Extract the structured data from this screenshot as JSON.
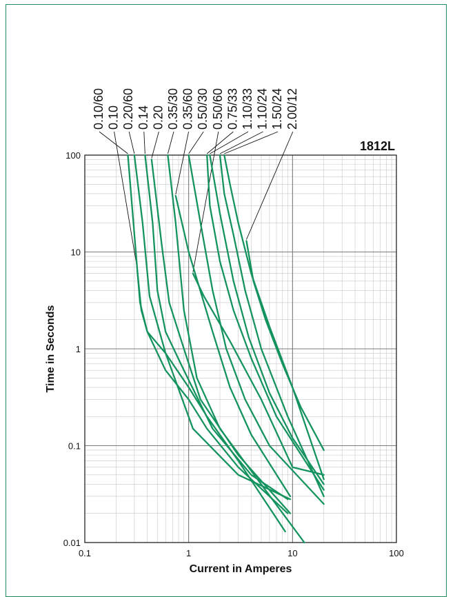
{
  "chart_data": {
    "type": "line",
    "title": "1812L",
    "xlabel": "Current in Amperes",
    "ylabel": "Time in Seconds",
    "xscale": "log",
    "yscale": "log",
    "xlim": [
      0.1,
      100
    ],
    "ylim": [
      0.01,
      100
    ],
    "grid": true,
    "x_tick_labels": [
      "0.1",
      "1",
      "10",
      "100"
    ],
    "y_tick_labels": [
      "0.01",
      "0.1",
      "1",
      "10",
      "100"
    ],
    "line_color": "#14935e",
    "series": [
      {
        "name": "0.10/60",
        "points": [
          [
            0.26,
            100
          ],
          [
            0.31,
            10
          ],
          [
            0.34,
            3
          ],
          [
            0.4,
            1.5
          ],
          [
            0.6,
            0.6
          ],
          [
            1.0,
            0.3
          ],
          [
            1.5,
            0.15
          ],
          [
            3.0,
            0.06
          ],
          [
            9.0,
            0.02
          ]
        ]
      },
      {
        "name": "0.10",
        "points": [
          [
            0.32,
            6.5
          ],
          [
            0.35,
            2.5
          ],
          [
            0.4,
            1.5
          ],
          [
            0.6,
            0.9
          ],
          [
            1.0,
            0.4
          ],
          [
            1.5,
            0.2
          ],
          [
            3.0,
            0.07
          ],
          [
            8.5,
            0.013
          ]
        ]
      },
      {
        "name": "0.20/60",
        "points": [
          [
            0.3,
            100
          ],
          [
            0.36,
            20
          ],
          [
            0.42,
            3.5
          ],
          [
            0.6,
            0.9
          ],
          [
            1.1,
            0.15
          ],
          [
            3.0,
            0.05
          ],
          [
            9.5,
            0.028
          ]
        ]
      },
      {
        "name": "0.14",
        "points": [
          [
            0.38,
            100
          ],
          [
            0.45,
            20
          ],
          [
            0.5,
            4
          ],
          [
            0.6,
            1.5
          ],
          [
            0.9,
            0.6
          ],
          [
            1.7,
            0.15
          ],
          [
            4.0,
            0.05
          ],
          [
            9.0,
            0.028
          ]
        ]
      },
      {
        "name": "0.20",
        "points": [
          [
            0.44,
            90
          ],
          [
            0.55,
            12
          ],
          [
            0.65,
            3
          ],
          [
            0.9,
            1
          ],
          [
            1.3,
            0.3
          ],
          [
            3.0,
            0.08
          ],
          [
            9.5,
            0.02
          ]
        ]
      },
      {
        "name": "0.35/30",
        "points": [
          [
            0.63,
            100
          ],
          [
            0.75,
            20
          ],
          [
            0.9,
            2.5
          ],
          [
            1.2,
            0.5
          ],
          [
            2.0,
            0.15
          ],
          [
            4.0,
            0.055
          ],
          [
            13.0,
            0.01
          ]
        ]
      },
      {
        "name": "0.35/60",
        "points": [
          [
            0.75,
            38
          ],
          [
            1.0,
            10
          ],
          [
            1.7,
            1.5
          ],
          [
            2.5,
            0.4
          ],
          [
            4.0,
            0.13
          ],
          [
            9.5,
            0.03
          ]
        ]
      },
      {
        "name": "0.50/30",
        "points": [
          [
            1.0,
            100
          ],
          [
            1.3,
            20
          ],
          [
            1.7,
            4
          ],
          [
            2.3,
            1
          ],
          [
            3.5,
            0.3
          ],
          [
            6.0,
            0.1
          ],
          [
            20.0,
            0.025
          ]
        ]
      },
      {
        "name": "0.50/60",
        "points": [
          [
            1.1,
            6
          ],
          [
            1.4,
            3.5
          ],
          [
            2.5,
            1.2
          ],
          [
            5.0,
            0.3
          ],
          [
            10.0,
            0.06
          ],
          [
            20.0,
            0.05
          ]
        ]
      },
      {
        "name": "0.75/33",
        "points": [
          [
            1.5,
            100
          ],
          [
            1.6,
            30
          ],
          [
            2.0,
            8
          ],
          [
            2.7,
            2.5
          ],
          [
            4.0,
            0.8
          ],
          [
            7.0,
            0.2
          ],
          [
            20.0,
            0.035
          ]
        ]
      },
      {
        "name": "1.10/33",
        "points": [
          [
            1.6,
            100
          ],
          [
            2.0,
            25
          ],
          [
            2.7,
            5
          ],
          [
            3.8,
            1.3
          ],
          [
            6.0,
            0.35
          ],
          [
            10.0,
            0.12
          ],
          [
            20.0,
            0.04
          ]
        ]
      },
      {
        "name": "1.10/24",
        "points": [
          [
            2.0,
            100
          ],
          [
            2.2,
            40
          ],
          [
            2.7,
            15
          ],
          [
            3.5,
            4
          ],
          [
            5.0,
            1
          ],
          [
            9.0,
            0.2
          ],
          [
            20.0,
            0.03
          ]
        ]
      },
      {
        "name": "1.50/24",
        "points": [
          [
            2.2,
            100
          ],
          [
            2.5,
            50
          ],
          [
            3.0,
            20
          ],
          [
            4.0,
            6
          ],
          [
            6.0,
            1.7
          ],
          [
            10.0,
            0.4
          ],
          [
            20.0,
            0.045
          ]
        ]
      },
      {
        "name": "2.00/12",
        "points": [
          [
            3.6,
            13
          ],
          [
            4.2,
            5
          ],
          [
            5.5,
            2
          ],
          [
            8.0,
            0.7
          ],
          [
            12.0,
            0.25
          ],
          [
            20.0,
            0.09
          ]
        ]
      }
    ],
    "label_order": [
      "0.10/60",
      "0.10",
      "0.20/60",
      "0.14",
      "0.20",
      "0.35/30",
      "0.35/60",
      "0.50/30",
      "0.50/60",
      "0.75/33",
      "1.10/33",
      "1.10/24",
      "1.50/24",
      "2.00/12"
    ]
  }
}
